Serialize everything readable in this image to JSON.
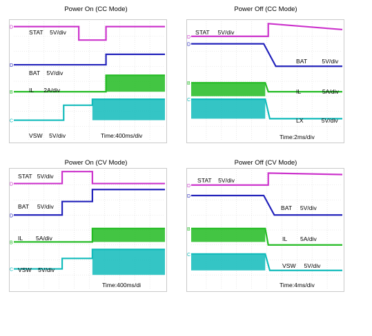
{
  "page_header": "",
  "watermark": "",
  "chart_data": [
    {
      "type": "line",
      "title": "Power On (CC Mode)",
      "time_label": "Time:400ms/div",
      "channels": [
        {
          "name": "STAT",
          "scale": "5V/div",
          "color": "#cc33cc",
          "marker": "D",
          "levels": [
            {
              "t": 0,
              "y": -0.35
            },
            {
              "t": 4.3,
              "y": -0.35
            },
            {
              "t": 4.3,
              "y": -1.25
            },
            {
              "t": 6.1,
              "y": -1.25
            },
            {
              "t": 6.1,
              "y": -0.35
            },
            {
              "t": 10,
              "y": -0.35
            }
          ]
        },
        {
          "name": "BAT",
          "scale": "5V/div",
          "color": "#2222bb",
          "marker": "D",
          "levels": [
            {
              "t": 0,
              "y": -2.9
            },
            {
              "t": 6.1,
              "y": -2.9
            },
            {
              "t": 6.1,
              "y": -2.2
            },
            {
              "t": 10,
              "y": -2.2
            }
          ]
        },
        {
          "name": "IL",
          "scale": "2A/div",
          "color": "#22bb22",
          "marker": "B",
          "levels": [
            {
              "t": 0,
              "y": -4.7
            },
            {
              "t": 6.1,
              "y": -4.7
            },
            {
              "t": 6.1,
              "y": -3.6
            },
            {
              "t": 10,
              "y": -3.6
            }
          ],
          "ripple_from": 6.1,
          "ripple_to": -4.7
        },
        {
          "name": "VSW",
          "scale": "5V/div",
          "color": "#11bbbb",
          "marker": "C",
          "levels": [
            {
              "t": 0,
              "y": -6.6
            },
            {
              "t": 3.3,
              "y": -6.6
            },
            {
              "t": 3.3,
              "y": -5.6
            },
            {
              "t": 5.2,
              "y": -5.6
            },
            {
              "t": 5.2,
              "y": -5.2
            },
            {
              "t": 10,
              "y": -5.2
            }
          ],
          "ripple_from": 5.2,
          "ripple_to": -6.6
        }
      ]
    },
    {
      "type": "line",
      "title": "Power Off (CC Mode)",
      "time_label": "Time:2ms/div",
      "channels": [
        {
          "name": "STAT",
          "scale": "5V/div",
          "color": "#cc33cc",
          "marker": "D",
          "levels": [
            {
              "t": 0,
              "y": -1.0
            },
            {
              "t": 5.1,
              "y": -1.0
            },
            {
              "t": 5.1,
              "y": -0.15
            },
            {
              "t": 10,
              "y": -0.55
            }
          ]
        },
        {
          "name": "BAT",
          "scale": "5V/div",
          "color": "#2222bb",
          "marker": "D",
          "levels": [
            {
              "t": 0,
              "y": -1.5
            },
            {
              "t": 4.8,
              "y": -1.5
            },
            {
              "t": 5.6,
              "y": -3.0
            },
            {
              "t": 10,
              "y": -3.0
            }
          ]
        },
        {
          "name": "IL",
          "scale": "5A/div",
          "color": "#22bb22",
          "marker": "B",
          "levels": [
            {
              "t": 0,
              "y": -4.1
            },
            {
              "t": 4.9,
              "y": -4.1
            },
            {
              "t": 5.1,
              "y": -4.7
            },
            {
              "t": 10,
              "y": -4.7
            }
          ],
          "ripple_to_before": -5.0
        },
        {
          "name": "LX",
          "scale": "5V/div",
          "color": "#11bbbb",
          "marker": "C",
          "levels": [
            {
              "t": 0,
              "y": -5.2
            },
            {
              "t": 4.9,
              "y": -5.2
            },
            {
              "t": 5.2,
              "y": -6.5
            },
            {
              "t": 10,
              "y": -6.5
            }
          ],
          "ripple_to_before": -6.5
        }
      ]
    },
    {
      "type": "line",
      "title": "Power On (CV Mode)",
      "time_label": "Time:400ms/di",
      "channels": [
        {
          "name": "STAT",
          "scale": "5V/div",
          "color": "#cc33cc",
          "marker": "D",
          "levels": [
            {
              "t": 0,
              "y": -0.9
            },
            {
              "t": 3.2,
              "y": -0.9
            },
            {
              "t": 3.2,
              "y": -0.1
            },
            {
              "t": 5.2,
              "y": -0.1
            },
            {
              "t": 5.2,
              "y": -0.9
            },
            {
              "t": 10,
              "y": -0.9
            }
          ]
        },
        {
          "name": "BAT",
          "scale": "5V/div",
          "color": "#2222bb",
          "marker": "D",
          "levels": [
            {
              "t": 0,
              "y": -3.0
            },
            {
              "t": 3.2,
              "y": -3.0
            },
            {
              "t": 3.2,
              "y": -2.1
            },
            {
              "t": 5.2,
              "y": -2.1
            },
            {
              "t": 5.2,
              "y": -1.3
            },
            {
              "t": 10,
              "y": -1.3
            }
          ]
        },
        {
          "name": "IL",
          "scale": "5A/div",
          "color": "#22bb22",
          "marker": "B",
          "levels": [
            {
              "t": 0,
              "y": -4.8
            },
            {
              "t": 5.2,
              "y": -4.8
            },
            {
              "t": 5.2,
              "y": -3.9
            },
            {
              "t": 10,
              "y": -3.9
            }
          ],
          "ripple_from": 5.2,
          "ripple_to": -4.8
        },
        {
          "name": "VSW",
          "scale": "5V/div",
          "color": "#11bbbb",
          "marker": "C",
          "levels": [
            {
              "t": 0,
              "y": -6.6
            },
            {
              "t": 3.2,
              "y": -6.6
            },
            {
              "t": 3.2,
              "y": -5.9
            },
            {
              "t": 5.2,
              "y": -5.9
            },
            {
              "t": 5.2,
              "y": -5.3
            },
            {
              "t": 10,
              "y": -5.3
            }
          ],
          "ripple_from": 5.2,
          "ripple_to": -7.0
        }
      ]
    },
    {
      "type": "line",
      "title": "Power Off (CV Mode)",
      "time_label": "Time:4ms/div",
      "channels": [
        {
          "name": "STAT",
          "scale": "5V/div",
          "color": "#cc33cc",
          "marker": "D",
          "levels": [
            {
              "t": 0,
              "y": -1.0
            },
            {
              "t": 5.1,
              "y": -1.0
            },
            {
              "t": 5.1,
              "y": -0.2
            },
            {
              "t": 10,
              "y": -0.3
            }
          ]
        },
        {
          "name": "BAT",
          "scale": "5V/div",
          "color": "#2222bb",
          "marker": "D",
          "levels": [
            {
              "t": 0,
              "y": -1.7
            },
            {
              "t": 4.8,
              "y": -1.7
            },
            {
              "t": 5.5,
              "y": -3.0
            },
            {
              "t": 10,
              "y": -3.0
            }
          ]
        },
        {
          "name": "IL",
          "scale": "5A/div",
          "color": "#22bb22",
          "marker": "B",
          "levels": [
            {
              "t": 0,
              "y": -3.9
            },
            {
              "t": 4.9,
              "y": -3.9
            },
            {
              "t": 5.1,
              "y": -5.0
            },
            {
              "t": 10,
              "y": -5.0
            }
          ],
          "ripple_to_before": -4.8
        },
        {
          "name": "VSW",
          "scale": "5V/div",
          "color": "#11bbbb",
          "marker": "C",
          "levels": [
            {
              "t": 0,
              "y": -5.6
            },
            {
              "t": 4.9,
              "y": -5.6
            },
            {
              "t": 5.2,
              "y": -6.7
            },
            {
              "t": 10,
              "y": -6.7
            }
          ],
          "ripple_to_before": -6.7
        }
      ]
    }
  ]
}
